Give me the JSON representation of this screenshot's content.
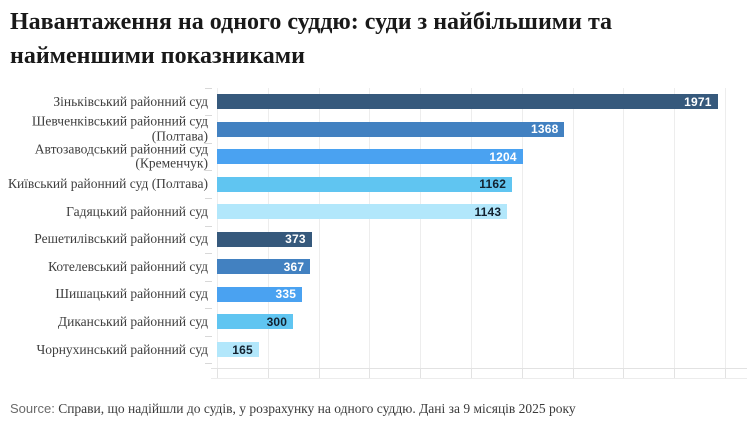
{
  "page": {
    "source_prefix": "Source:",
    "source_text": "Справи, що надійшли до судів, у розрахунку на одного суддю. Дані за 9 місяців 2025 року"
  },
  "chart_data": {
    "type": "bar",
    "orientation": "horizontal",
    "title": "Навантаження на одного суддю: суди з найбільшими та найменшими показниками",
    "xlabel": "",
    "ylabel": "",
    "x_max": 2000,
    "grid_step": 200,
    "grid": "on",
    "legend": "none",
    "categories": [
      [
        "Зіньківський районний суд"
      ],
      [
        "Шевченківський районний суд",
        "(Полтава)"
      ],
      [
        "Автозаводський районний суд",
        "(Кременчук)"
      ],
      [
        "Київський районний суд (Полтава)"
      ],
      [
        "Гадяцький районний суд"
      ],
      [
        "Решетилівський районний суд"
      ],
      [
        "Котелевський районний суд"
      ],
      [
        "Шишацький районний суд"
      ],
      [
        "Диканський районний суд"
      ],
      [
        "Чорнухинський районний суд"
      ]
    ],
    "values": [
      1971,
      1368,
      1204,
      1162,
      1143,
      373,
      367,
      335,
      300,
      165
    ],
    "palette": [
      {
        "bar": "#36597c",
        "label": "#ffffff"
      },
      {
        "bar": "#4281c1",
        "label": "#ffffff"
      },
      {
        "bar": "#4aa2f1",
        "label": "#ffffff"
      },
      {
        "bar": "#60c5f1",
        "label": "#12212f"
      },
      {
        "bar": "#b2e7fb",
        "label": "#12212f"
      }
    ]
  }
}
